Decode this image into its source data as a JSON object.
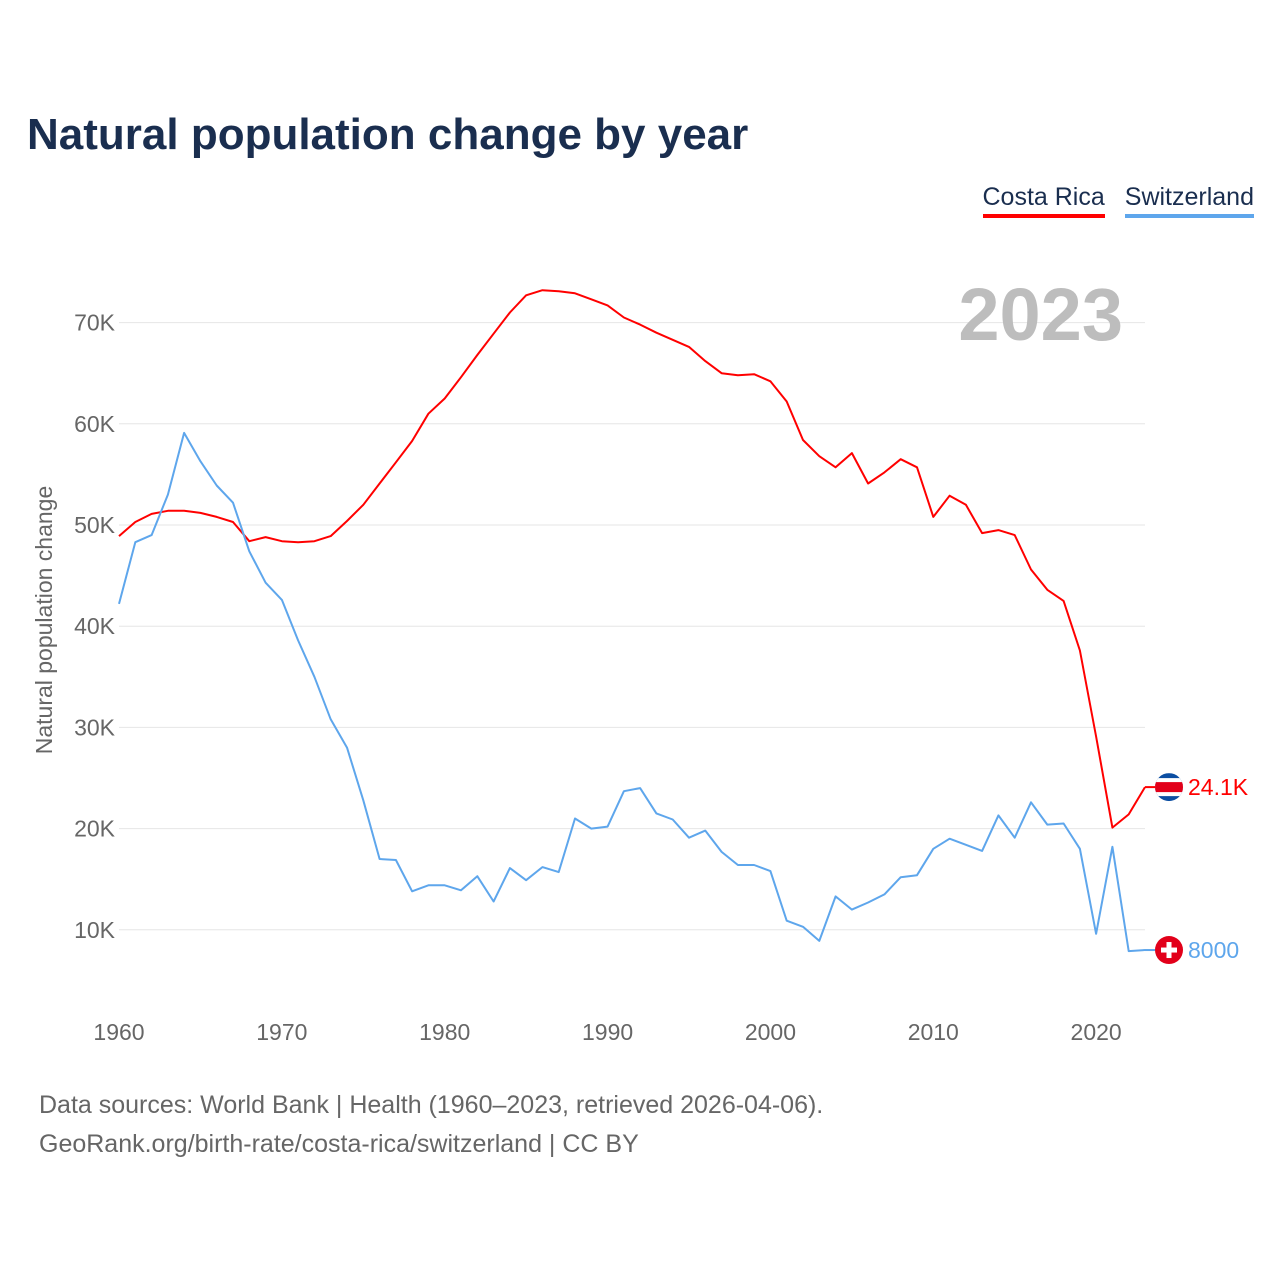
{
  "chart_data": {
    "type": "line",
    "title": "Natural population change by year",
    "xlabel": "",
    "ylabel": "Natural population change",
    "xlim": [
      1960,
      2023
    ],
    "ylim": [
      0,
      75000
    ],
    "grid": true,
    "legend_position": "top-right",
    "year_watermark": "2023",
    "x_ticks": [
      "1960",
      "1970",
      "1980",
      "1990",
      "2000",
      "2010",
      "2020"
    ],
    "y_ticks": [
      {
        "value": 10000,
        "label": "10K"
      },
      {
        "value": 20000,
        "label": "20K"
      },
      {
        "value": 30000,
        "label": "30K"
      },
      {
        "value": 40000,
        "label": "40K"
      },
      {
        "value": 50000,
        "label": "50K"
      },
      {
        "value": 60000,
        "label": "60K"
      },
      {
        "value": 70000,
        "label": "70K"
      }
    ],
    "x": [
      1960,
      1961,
      1962,
      1963,
      1964,
      1965,
      1966,
      1967,
      1968,
      1969,
      1970,
      1971,
      1972,
      1973,
      1974,
      1975,
      1976,
      1977,
      1978,
      1979,
      1980,
      1981,
      1982,
      1983,
      1984,
      1985,
      1986,
      1987,
      1988,
      1989,
      1990,
      1991,
      1992,
      1993,
      1994,
      1995,
      1996,
      1997,
      1998,
      1999,
      2000,
      2001,
      2002,
      2003,
      2004,
      2005,
      2006,
      2007,
      2008,
      2009,
      2010,
      2011,
      2012,
      2013,
      2014,
      2015,
      2016,
      2017,
      2018,
      2019,
      2020,
      2021,
      2022,
      2023
    ],
    "series": [
      {
        "name": "Costa Rica",
        "color": "#ff0000",
        "end_label": "24.1K",
        "flag": "costa-rica",
        "values": [
          48900,
          50300,
          51100,
          51400,
          51400,
          51200,
          50800,
          50300,
          48400,
          48800,
          48400,
          48300,
          48400,
          48900,
          50400,
          52000,
          54100,
          56200,
          58300,
          61000,
          62500,
          64600,
          66800,
          68900,
          71000,
          72700,
          73200,
          73100,
          72900,
          72300,
          71700,
          70500,
          69800,
          69000,
          68300,
          67600,
          66200,
          65000,
          64800,
          64900,
          64200,
          62200,
          58400,
          56800,
          55700,
          57100,
          54100,
          55200,
          56500,
          55700,
          50800,
          52900,
          52000,
          49200,
          49500,
          49000,
          45600,
          43600,
          42500,
          37600,
          29100,
          20100,
          21400,
          24100
        ]
      },
      {
        "name": "Switzerland",
        "color": "#5ea6ec",
        "end_label": "8000",
        "flag": "switzerland",
        "values": [
          42200,
          48300,
          49000,
          53000,
          59100,
          56300,
          53900,
          52200,
          47400,
          44300,
          42600,
          38600,
          35000,
          30800,
          28000,
          22800,
          17000,
          16900,
          13800,
          14400,
          14400,
          13900,
          15300,
          12800,
          16100,
          14900,
          16200,
          15700,
          21000,
          20000,
          20200,
          23700,
          24000,
          21500,
          20900,
          19100,
          19800,
          17700,
          16400,
          16400,
          15800,
          10900,
          10300,
          8900,
          13300,
          12000,
          12700,
          13500,
          15200,
          15400,
          18000,
          19000,
          18400,
          17800,
          21300,
          19100,
          22600,
          20400,
          20500,
          18000,
          9600,
          18200,
          7900,
          8000
        ]
      }
    ]
  },
  "footer": {
    "line1": "Data sources: World Bank | Health (1960–2023, retrieved 2026-04-06).",
    "line2": "GeoRank.org/birth-rate/costa-rica/switzerland | CC BY"
  }
}
